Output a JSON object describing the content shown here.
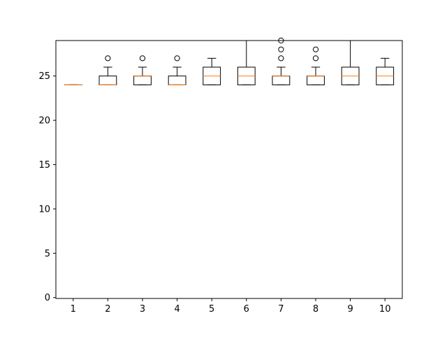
{
  "chart_data": {
    "type": "box",
    "title": "",
    "xlabel": "",
    "ylabel": "",
    "categories": [
      "1",
      "2",
      "3",
      "4",
      "5",
      "6",
      "7",
      "8",
      "9",
      "10"
    ],
    "ylim": [
      -0.1,
      29
    ],
    "yticks": [
      0,
      5,
      10,
      15,
      20,
      25
    ],
    "grid": false,
    "colors": {
      "box": "#000000",
      "median": "#ff7f0e",
      "flier": "#000000"
    },
    "boxes": [
      {
        "label": "1",
        "whislo": 24,
        "q1": 24,
        "med": 24,
        "q3": 24,
        "whishi": 24,
        "fliers": []
      },
      {
        "label": "2",
        "whislo": 24,
        "q1": 24,
        "med": 24,
        "q3": 25,
        "whishi": 26,
        "fliers": [
          27
        ]
      },
      {
        "label": "3",
        "whislo": 24,
        "q1": 24,
        "med": 25,
        "q3": 25,
        "whishi": 26,
        "fliers": [
          27
        ]
      },
      {
        "label": "4",
        "whislo": 24,
        "q1": 24,
        "med": 24,
        "q3": 25,
        "whishi": 26,
        "fliers": [
          27
        ]
      },
      {
        "label": "5",
        "whislo": 24,
        "q1": 24,
        "med": 25,
        "q3": 26,
        "whishi": 27,
        "fliers": []
      },
      {
        "label": "6",
        "whislo": 24,
        "q1": 24,
        "med": 25,
        "q3": 26,
        "whishi": 29,
        "fliers": []
      },
      {
        "label": "7",
        "whislo": 24,
        "q1": 24,
        "med": 25,
        "q3": 25,
        "whishi": 26,
        "fliers": [
          27,
          28,
          29
        ]
      },
      {
        "label": "8",
        "whislo": 24,
        "q1": 24,
        "med": 25,
        "q3": 25,
        "whishi": 26,
        "fliers": [
          27,
          28
        ]
      },
      {
        "label": "9",
        "whislo": 24,
        "q1": 24,
        "med": 25,
        "q3": 26,
        "whishi": 29,
        "fliers": []
      },
      {
        "label": "10",
        "whislo": 24,
        "q1": 24,
        "med": 25,
        "q3": 26,
        "whishi": 27,
        "fliers": []
      }
    ]
  }
}
